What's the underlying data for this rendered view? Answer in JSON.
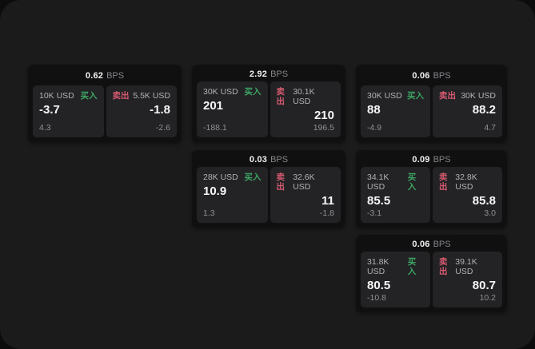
{
  "colors": {
    "buy_accent": "#3da463",
    "sell_accent": "#d75a70",
    "panel_bg": "#1b1b1c",
    "card_bg": "#101011",
    "tile_bg": "#232325"
  },
  "cards": [
    {
      "bps_value": "0.62",
      "bps_unit": "BPS",
      "buy": {
        "amount": "10K USD",
        "side_label": "买入",
        "price": "-3.7",
        "delta": "4.3"
      },
      "sell": {
        "side_label": "卖出",
        "amount": "5.5K USD",
        "price": "-1.8",
        "delta": "-2.6"
      }
    },
    {
      "bps_value": "2.92",
      "bps_unit": "BPS",
      "buy": {
        "amount": "30K USD",
        "side_label": "买入",
        "price": "201",
        "delta": "-188.1"
      },
      "sell": {
        "side_label": "卖出",
        "amount": "30.1K USD",
        "price": "210",
        "delta": "196.5"
      }
    },
    {
      "bps_value": "0.06",
      "bps_unit": "BPS",
      "buy": {
        "amount": "30K USD",
        "side_label": "买入",
        "price": "88",
        "delta": "-4.9"
      },
      "sell": {
        "side_label": "卖出",
        "amount": "30K USD",
        "price": "88.2",
        "delta": "4.7"
      }
    },
    {
      "bps_value": "0.03",
      "bps_unit": "BPS",
      "buy": {
        "amount": "28K USD",
        "side_label": "买入",
        "price": "10.9",
        "delta": "1.3"
      },
      "sell": {
        "side_label": "卖出",
        "amount": "32.6K USD",
        "price": "11",
        "delta": "-1.8"
      }
    },
    {
      "bps_value": "0.09",
      "bps_unit": "BPS",
      "buy": {
        "amount": "34.1K USD",
        "side_label": "买入",
        "price": "85.5",
        "delta": "-3.1"
      },
      "sell": {
        "side_label": "卖出",
        "amount": "32.8K USD",
        "price": "85.8",
        "delta": "3.0"
      }
    },
    {
      "bps_value": "0.06",
      "bps_unit": "BPS",
      "buy": {
        "amount": "31.8K USD",
        "side_label": "买入",
        "price": "80.5",
        "delta": "-10.8"
      },
      "sell": {
        "side_label": "卖出",
        "amount": "39.1K USD",
        "price": "80.7",
        "delta": "10.2"
      }
    }
  ]
}
